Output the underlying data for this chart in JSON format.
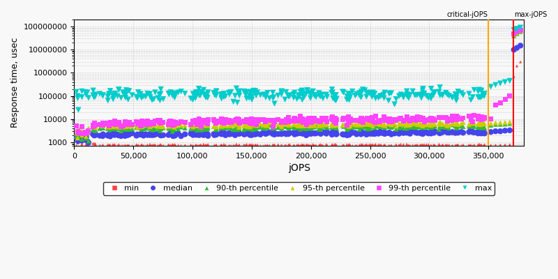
{
  "xlabel": "jOPS",
  "ylabel": "Response time, usec",
  "xlim": [
    0,
    380000
  ],
  "ylim_log": [
    700,
    200000000
  ],
  "critical_jOPS": 350000,
  "max_jOPS": 371000,
  "critical_label": "critical-jOPS",
  "max_label": "max-jOPS",
  "critical_color": "#FFA500",
  "max_color": "#FF0000",
  "series": {
    "min": {
      "color": "#FF4444",
      "marker": "^",
      "ms": 3,
      "label": "min"
    },
    "median": {
      "color": "#4444EE",
      "marker": "o",
      "ms": 6,
      "label": "median"
    },
    "p90": {
      "color": "#33BB33",
      "marker": "^",
      "ms": 5,
      "label": "90-th percentile"
    },
    "p95": {
      "color": "#CCCC00",
      "marker": "^",
      "ms": 5,
      "label": "95-th percentile"
    },
    "p99": {
      "color": "#FF44FF",
      "marker": "s",
      "ms": 5,
      "label": "99-th percentile"
    },
    "max": {
      "color": "#00CCCC",
      "marker": "v",
      "ms": 6,
      "label": "max"
    }
  },
  "bg_color": "#F8F8F8",
  "grid_color": "#CCCCCC",
  "figsize": [
    8.0,
    4.0
  ],
  "dpi": 100
}
